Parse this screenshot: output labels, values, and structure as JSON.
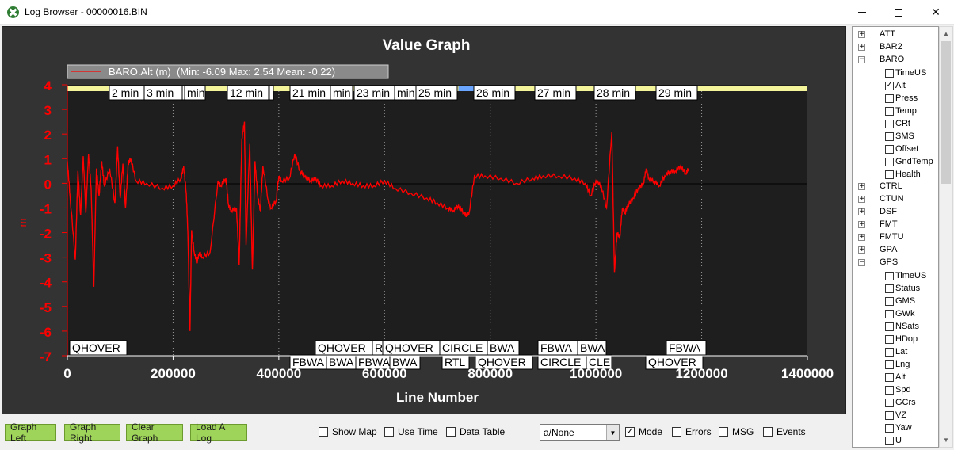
{
  "window": {
    "title": "Log Browser - 00000016.BIN",
    "controls": {
      "minimize": "minimize",
      "maximize": "maximize",
      "close": "✕"
    }
  },
  "graph": {
    "title": "Value Graph",
    "legend": "BARO.Alt (m)  (Min: -6.09 Max: 2.54 Mean: -0.22)",
    "y_unit_label": "m",
    "x_axis_label": "Line Number",
    "time_labels": [
      "2 min",
      "3 min",
      "n",
      "min",
      "12 min",
      "",
      "21 min",
      "min",
      "23 min",
      "min",
      "25 min",
      "26 min",
      "27 min",
      "28 min",
      "29 min"
    ],
    "mode_labels_top": [
      "QHOVER",
      "QHOVER",
      "R",
      "QHOVER",
      "CIRCLE",
      "BWA",
      "FBWA",
      "BWA",
      "FBWA"
    ],
    "mode_labels_bottom": [
      "FBWA",
      "BWA",
      "FBWA",
      "BWA",
      "RTL",
      "QHOVER",
      "CIRCLE",
      "CLE",
      "QHOVER"
    ],
    "colors": {
      "plot_bg": "#1e1e1e",
      "series": "#ff0000",
      "axis_text": "#ff0000",
      "mode_bar": "#f4f49a",
      "rtl_bar": "#6aa6ff"
    }
  },
  "chart_data": {
    "type": "line",
    "title": "Value Graph",
    "xlabel": "Line Number",
    "ylabel": "m",
    "xlim": [
      0,
      1400000
    ],
    "ylim": [
      -7,
      4
    ],
    "x_ticks": [
      "0",
      "200000",
      "400000",
      "600000",
      "800000",
      "1000000",
      "1200000",
      "1400000"
    ],
    "y_ticks": [
      "4",
      "3",
      "2",
      "1",
      "0",
      "-1",
      "-2",
      "-3",
      "-4",
      "-5",
      "-6",
      "-7"
    ],
    "grid": true,
    "legend_position": "top-left",
    "series": [
      {
        "name": "BARO.Alt (m)",
        "x": [
          0,
          5000,
          15000,
          20000,
          25000,
          30000,
          35000,
          40000,
          45000,
          50000,
          55000,
          60000,
          65000,
          70000,
          80000,
          90000,
          95000,
          100000,
          105000,
          110000,
          115000,
          120000,
          130000,
          150000,
          180000,
          200000,
          215000,
          220000,
          225000,
          228000,
          232000,
          235000,
          240000,
          245000,
          250000,
          255000,
          270000,
          285000,
          290000,
          300000,
          305000,
          310000,
          320000,
          325000,
          330000,
          335000,
          338000,
          345000,
          350000,
          355000,
          360000,
          365000,
          370000,
          380000,
          385000,
          395000,
          400000,
          405000,
          420000,
          430000,
          440000,
          450000,
          460000,
          470000,
          480000,
          500000,
          520000,
          540000,
          560000,
          580000,
          600000,
          620000,
          650000,
          680000,
          700000,
          720000,
          730000,
          740000,
          750000,
          755000,
          760000,
          770000,
          790000,
          820000,
          850000,
          880000,
          900000,
          930000,
          960000,
          980000,
          990000,
          1000000,
          1010000,
          1020000,
          1030000,
          1035000,
          1040000,
          1045000,
          1050000,
          1055000,
          1060000,
          1070000,
          1080000,
          1090000,
          1095000,
          1100000,
          1110000,
          1120000,
          1130000,
          1140000,
          1150000,
          1160000,
          1170000,
          1175000
        ],
        "y": [
          0.9,
          -0.5,
          -3.1,
          0.5,
          -1.3,
          1.1,
          -1.2,
          1.2,
          -0.2,
          -4.2,
          0.6,
          -0.5,
          0.9,
          -0.1,
          0.6,
          -0.8,
          1.5,
          -0.6,
          0.8,
          -1.0,
          0.8,
          1.0,
          0.1,
          0.0,
          -0.2,
          -0.1,
          0.2,
          0.7,
          -0.4,
          -2.0,
          -6.0,
          -1.9,
          -2.8,
          -3.2,
          -2.8,
          -3.0,
          -2.8,
          0.1,
          -0.1,
          0.2,
          -0.9,
          -1.1,
          -1.0,
          -3.3,
          1.8,
          2.5,
          -2.5,
          1.6,
          -3.5,
          0.9,
          -0.5,
          -1.1,
          0.7,
          -0.7,
          -1.0,
          -0.7,
          0.3,
          0.1,
          0.2,
          1.2,
          0.5,
          0.3,
          0.1,
          0.2,
          -0.1,
          -0.1,
          0.1,
          0.0,
          -0.1,
          -0.1,
          0.1,
          -0.2,
          -0.4,
          -0.6,
          -0.8,
          -1.0,
          -1.1,
          -0.9,
          -1.2,
          -1.3,
          -1.2,
          0.3,
          0.3,
          0.2,
          0.0,
          0.2,
          0.3,
          0.3,
          0.2,
          0.0,
          -0.5,
          0.1,
          -0.1,
          -1.0,
          2.1,
          -3.6,
          -2.0,
          -2.2,
          -1.0,
          -1.2,
          -0.9,
          -0.6,
          -0.2,
          0.0,
          0.6,
          0.2,
          0.1,
          -0.1,
          0.3,
          0.5,
          0.5,
          0.7,
          0.4,
          0.6
        ]
      }
    ],
    "stats": {
      "min": -6.09,
      "max": 2.54,
      "mean": -0.22
    }
  },
  "bottom": {
    "buttons": [
      "Graph Left",
      "Graph Right",
      "Clear Graph",
      "Load A Log"
    ],
    "show_map": "Show Map",
    "use_time": "Use Time",
    "data_table": "Data Table",
    "combo_value": "a/None",
    "mode": "Mode",
    "errors": "Errors",
    "msg": "MSG",
    "events": "Events"
  },
  "tree": {
    "groups_top": [
      {
        "label": "ATT",
        "state": "+"
      },
      {
        "label": "BAR2",
        "state": "+"
      },
      {
        "label": "BARO",
        "state": "-"
      }
    ],
    "baro_fields": [
      "TimeUS",
      "Alt",
      "Press",
      "Temp",
      "CRt",
      "SMS",
      "Offset",
      "GndTemp",
      "Health"
    ],
    "groups_mid": [
      {
        "label": "CTRL",
        "state": "+"
      },
      {
        "label": "CTUN",
        "state": "+"
      },
      {
        "label": "DSF",
        "state": "+"
      },
      {
        "label": "FMT",
        "state": "+"
      },
      {
        "label": "FMTU",
        "state": "+"
      },
      {
        "label": "GPA",
        "state": "+"
      },
      {
        "label": "GPS",
        "state": "-"
      }
    ],
    "gps_fields": [
      "TimeUS",
      "Status",
      "GMS",
      "GWk",
      "NSats",
      "HDop",
      "Lat",
      "Lng",
      "Alt",
      "Spd",
      "GCrs",
      "VZ",
      "Yaw",
      "U"
    ]
  }
}
